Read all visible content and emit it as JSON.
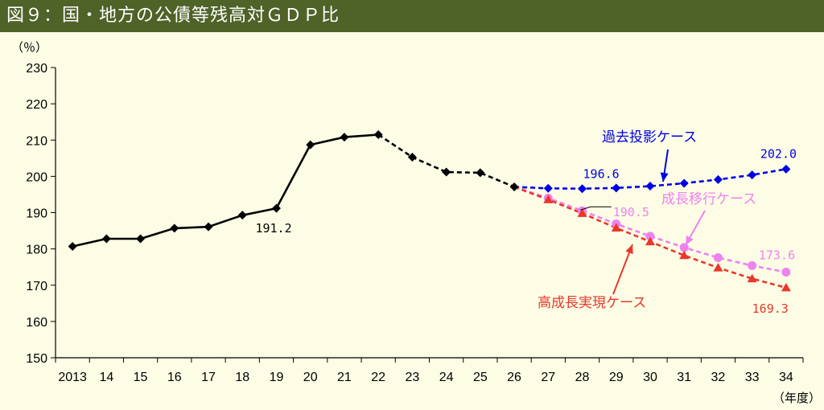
{
  "title": "図９：国・地方の公債等残高対ＧＤＰ比",
  "colors": {
    "title_bar": "#4f6228",
    "background": "#fdfde6",
    "historical": "#000000",
    "past_projection": "#0000e6",
    "growth_baseline": "#ee82ee",
    "high_growth": "#e8382b"
  },
  "chart_data": {
    "type": "line",
    "title": "図９：国・地方の公債等残高対ＧＤＰ比",
    "ylabel": "（％）",
    "xlabel": "（年度）",
    "ylim": [
      150,
      230
    ],
    "yticks": [
      150,
      160,
      170,
      180,
      190,
      200,
      210,
      220,
      230
    ],
    "grid": false,
    "categories": [
      "2013",
      "14",
      "15",
      "16",
      "17",
      "18",
      "19",
      "20",
      "21",
      "22",
      "23",
      "24",
      "25",
      "26",
      "27",
      "28",
      "29",
      "30",
      "31",
      "32",
      "33",
      "34"
    ],
    "series": [
      {
        "key": "actual",
        "color": "#000000",
        "marker": "diamond",
        "values": [
          180.7,
          182.8,
          182.8,
          185.7,
          186.1,
          189.3,
          191.2,
          208.7,
          210.8,
          211.5,
          null,
          null,
          null,
          null,
          null,
          null,
          null,
          null,
          null,
          null,
          null,
          null
        ]
      },
      {
        "key": "estimate",
        "color": "#000000",
        "marker": "diamond",
        "dashed": true,
        "values": [
          null,
          null,
          null,
          null,
          null,
          null,
          null,
          null,
          null,
          211.5,
          205.3,
          201.2,
          201.0,
          197.1,
          null,
          null,
          null,
          null,
          null,
          null,
          null,
          null
        ]
      },
      {
        "name": "過去投影ケース",
        "color": "#0000e6",
        "marker": "diamond",
        "dashed": true,
        "values": [
          null,
          null,
          null,
          null,
          null,
          null,
          null,
          null,
          null,
          null,
          null,
          null,
          null,
          197.1,
          196.7,
          196.6,
          196.8,
          197.3,
          198.1,
          199.1,
          200.4,
          202.0
        ]
      },
      {
        "name": "成長移行ケース",
        "color": "#ee82ee",
        "marker": "circle",
        "dashed": true,
        "values": [
          null,
          null,
          null,
          null,
          null,
          null,
          null,
          null,
          null,
          null,
          null,
          null,
          null,
          197.1,
          194.0,
          190.5,
          186.9,
          183.5,
          180.4,
          177.6,
          175.4,
          173.6
        ]
      },
      {
        "name": "高成長実現ケース",
        "color": "#e8382b",
        "marker": "triangle",
        "dashed": true,
        "values": [
          null,
          null,
          null,
          null,
          null,
          null,
          null,
          null,
          null,
          null,
          null,
          null,
          null,
          197.1,
          193.6,
          189.8,
          185.8,
          182.0,
          178.2,
          174.8,
          171.8,
          169.3
        ]
      }
    ],
    "annotations": [
      {
        "text": "191.2",
        "color": "#000000"
      },
      {
        "text": "196.6",
        "color": "#0000e6"
      },
      {
        "text": "202.0",
        "color": "#0000e6"
      },
      {
        "text": "190.5",
        "color": "#ee82ee"
      },
      {
        "text": "173.6",
        "color": "#ee82ee"
      },
      {
        "text": "169.3",
        "color": "#e8382b"
      }
    ],
    "case_labels": [
      {
        "text": "過去投影ケース",
        "color": "#0000e6"
      },
      {
        "text": "成長移行ケース",
        "color": "#ee82ee"
      },
      {
        "text": "高成長実現ケース",
        "color": "#e8382b"
      }
    ]
  }
}
